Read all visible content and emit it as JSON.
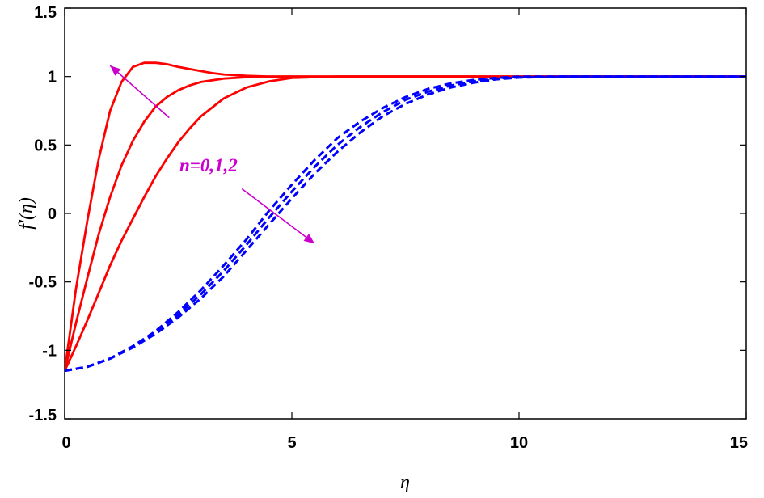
{
  "chart_data": {
    "type": "line",
    "title": "",
    "xlabel": "η",
    "ylabel": "f′(η)",
    "xlim": [
      0,
      15
    ],
    "ylim": [
      -1.5,
      1.5
    ],
    "xticks": [
      0,
      5,
      10,
      15
    ],
    "xtick_labels": [
      "0",
      "5",
      "10",
      "15"
    ],
    "yticks": [
      -1.5,
      -1,
      -0.5,
      0,
      0.5,
      1,
      1.5
    ],
    "ytick_labels": [
      "-1.5",
      "-1",
      "-0.5",
      "0",
      "0.5",
      "1",
      "1.5"
    ],
    "grid": false,
    "legend": "none",
    "annotation": {
      "text": "n=0,1,2",
      "color": "#cc00cc",
      "arrow_up_from": [
        2.3,
        0.7
      ],
      "arrow_up_to": [
        1.0,
        1.08
      ],
      "arrow_down_from": [
        3.9,
        0.18
      ],
      "arrow_down_to": [
        5.5,
        -0.22
      ]
    },
    "series": [
      {
        "color": "#ff0000",
        "style": "solid",
        "x": [
          0,
          0.25,
          0.5,
          0.75,
          1.0,
          1.25,
          1.5,
          1.75,
          2.0,
          2.25,
          2.5,
          2.75,
          3.0,
          3.25,
          3.5,
          4.0,
          4.5,
          5.0,
          5.5,
          6.0,
          7.0,
          8.0,
          10.0,
          12.5,
          15.0
        ],
        "y": [
          -1.15,
          -0.55,
          -0.05,
          0.4,
          0.75,
          0.96,
          1.07,
          1.1,
          1.1,
          1.09,
          1.07,
          1.055,
          1.04,
          1.025,
          1.015,
          1.005,
          1.0,
          1.0,
          1.0,
          1.0,
          1.0,
          1.0,
          1.0,
          1.0,
          1.0
        ]
      },
      {
        "color": "#ff0000",
        "style": "solid",
        "x": [
          0,
          0.25,
          0.5,
          0.75,
          1.0,
          1.25,
          1.5,
          1.75,
          2.0,
          2.25,
          2.5,
          2.75,
          3.0,
          3.5,
          4.0,
          4.5,
          5.0,
          5.5,
          6.0,
          7.0,
          8.0,
          10.0,
          12.5,
          15.0
        ],
        "y": [
          -1.15,
          -0.8,
          -0.47,
          -0.15,
          0.12,
          0.35,
          0.53,
          0.67,
          0.78,
          0.85,
          0.9,
          0.935,
          0.96,
          0.985,
          0.995,
          1.0,
          1.0,
          1.0,
          1.0,
          1.0,
          1.0,
          1.0,
          1.0,
          1.0
        ]
      },
      {
        "color": "#ff0000",
        "style": "solid",
        "x": [
          0,
          0.25,
          0.5,
          0.75,
          1.0,
          1.25,
          1.5,
          1.75,
          2.0,
          2.25,
          2.5,
          2.75,
          3.0,
          3.5,
          4.0,
          4.5,
          5.0,
          5.5,
          6.0,
          7.0,
          8.0,
          10.0,
          12.5,
          15.0
        ],
        "y": [
          -1.15,
          -0.97,
          -0.78,
          -0.58,
          -0.38,
          -0.2,
          -0.04,
          0.12,
          0.27,
          0.4,
          0.52,
          0.62,
          0.71,
          0.84,
          0.92,
          0.965,
          0.99,
          0.995,
          1.0,
          1.0,
          1.0,
          1.0,
          1.0,
          1.0
        ]
      },
      {
        "color": "#0000ff",
        "style": "dashed",
        "x": [
          0,
          0.5,
          1.0,
          1.5,
          2.0,
          2.5,
          3.0,
          3.5,
          4.0,
          4.5,
          5.0,
          5.5,
          6.0,
          6.5,
          7.0,
          7.5,
          8.0,
          8.5,
          9.0,
          9.5,
          10.0,
          11.0,
          12.0,
          13.0,
          15.0
        ],
        "y": [
          -1.15,
          -1.12,
          -1.06,
          -0.97,
          -0.86,
          -0.72,
          -0.56,
          -0.38,
          -0.19,
          0.02,
          0.21,
          0.39,
          0.55,
          0.67,
          0.77,
          0.85,
          0.91,
          0.95,
          0.975,
          0.99,
          1.0,
          1.0,
          1.0,
          1.0,
          1.0
        ]
      },
      {
        "color": "#0000ff",
        "style": "dashed",
        "x": [
          0,
          0.5,
          1.0,
          1.5,
          2.0,
          2.5,
          3.0,
          3.5,
          4.0,
          4.5,
          5.0,
          5.5,
          6.0,
          6.5,
          7.0,
          7.5,
          8.0,
          8.5,
          9.0,
          9.5,
          10.0,
          11.0,
          12.0,
          13.0,
          15.0
        ],
        "y": [
          -1.15,
          -1.12,
          -1.06,
          -0.97,
          -0.87,
          -0.74,
          -0.59,
          -0.42,
          -0.23,
          -0.03,
          0.16,
          0.34,
          0.5,
          0.63,
          0.74,
          0.83,
          0.89,
          0.935,
          0.965,
          0.985,
          0.995,
          1.0,
          1.0,
          1.0,
          1.0
        ]
      },
      {
        "color": "#0000ff",
        "style": "dashed",
        "x": [
          0,
          0.5,
          1.0,
          1.5,
          2.0,
          2.5,
          3.0,
          3.5,
          4.0,
          4.5,
          5.0,
          5.5,
          6.0,
          6.5,
          7.0,
          7.5,
          8.0,
          8.5,
          9.0,
          9.5,
          10.0,
          11.0,
          12.0,
          13.0,
          15.0
        ],
        "y": [
          -1.15,
          -1.12,
          -1.06,
          -0.98,
          -0.88,
          -0.76,
          -0.62,
          -0.46,
          -0.27,
          -0.08,
          0.11,
          0.29,
          0.45,
          0.59,
          0.71,
          0.8,
          0.87,
          0.92,
          0.955,
          0.98,
          0.993,
          1.0,
          1.0,
          1.0,
          1.0
        ]
      }
    ]
  }
}
